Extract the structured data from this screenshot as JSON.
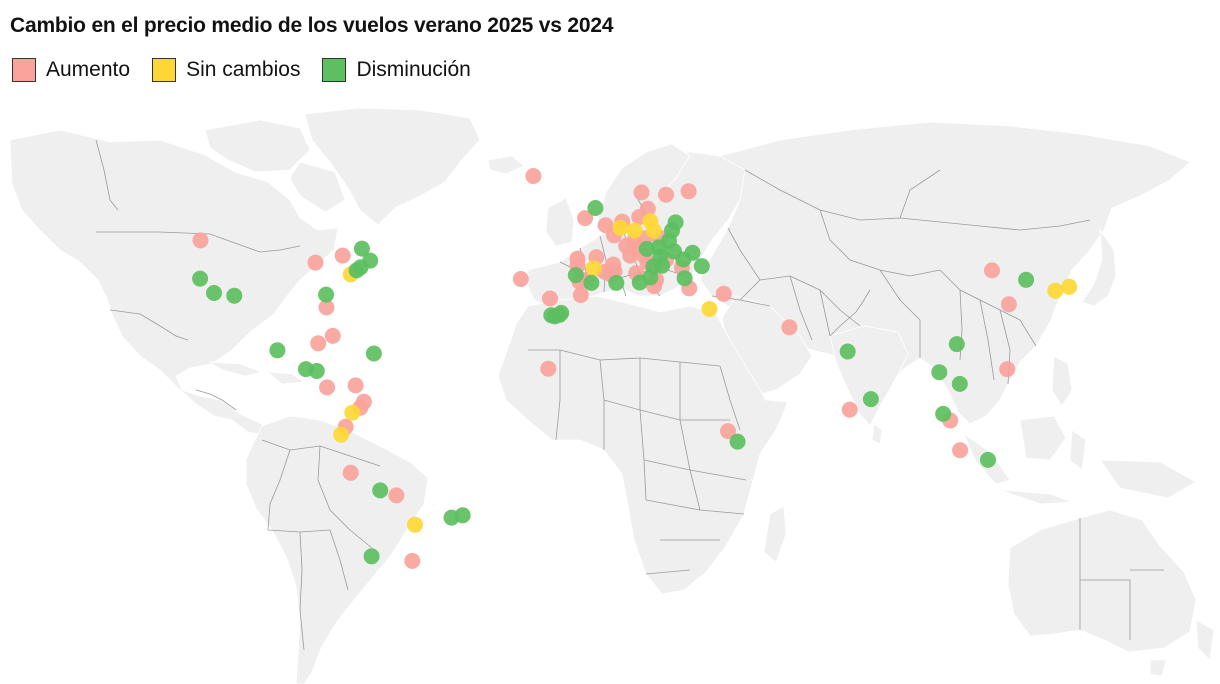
{
  "title": "Cambio en el precio medio de los vuelos verano 2025 vs 2024",
  "legend": [
    {
      "key": "increase",
      "label": "Aumento",
      "color": "#f9a39b"
    },
    {
      "key": "same",
      "label": "Sin cambios",
      "color": "#fdd835"
    },
    {
      "key": "decrease",
      "label": "Disminución",
      "color": "#5cbf60"
    }
  ],
  "markers": [
    {
      "lon": -21.9,
      "lat": 64.1,
      "status": "increase"
    },
    {
      "lon": -122.3,
      "lat": 47.6,
      "status": "increase"
    },
    {
      "lon": -87.6,
      "lat": 41.9,
      "status": "increase"
    },
    {
      "lon": -79.4,
      "lat": 43.7,
      "status": "increase"
    },
    {
      "lon": -73.6,
      "lat": 45.5,
      "status": "decrease"
    },
    {
      "lon": -71.1,
      "lat": 42.4,
      "status": "decrease"
    },
    {
      "lon": -74.0,
      "lat": 40.7,
      "status": "decrease"
    },
    {
      "lon": -75.2,
      "lat": 39.9,
      "status": "decrease"
    },
    {
      "lon": -77.0,
      "lat": 38.9,
      "status": "same"
    },
    {
      "lon": -122.4,
      "lat": 37.8,
      "status": "decrease"
    },
    {
      "lon": -118.2,
      "lat": 34.1,
      "status": "decrease"
    },
    {
      "lon": -112.1,
      "lat": 33.4,
      "status": "decrease"
    },
    {
      "lon": -84.4,
      "lat": 33.7,
      "status": "decrease"
    },
    {
      "lon": -84.3,
      "lat": 30.4,
      "status": "increase"
    },
    {
      "lon": -99.1,
      "lat": 19.4,
      "status": "decrease"
    },
    {
      "lon": -86.8,
      "lat": 21.2,
      "status": "increase"
    },
    {
      "lon": -82.4,
      "lat": 23.1,
      "status": "increase"
    },
    {
      "lon": -70.0,
      "lat": 18.6,
      "status": "decrease"
    },
    {
      "lon": -90.5,
      "lat": 14.6,
      "status": "decrease"
    },
    {
      "lon": -87.2,
      "lat": 14.1,
      "status": "decrease"
    },
    {
      "lon": -84.1,
      "lat": 9.9,
      "status": "increase"
    },
    {
      "lon": -75.5,
      "lat": 10.4,
      "status": "increase"
    },
    {
      "lon": -74.1,
      "lat": 4.7,
      "status": "increase"
    },
    {
      "lon": -73.0,
      "lat": 6.2,
      "status": "increase"
    },
    {
      "lon": -76.5,
      "lat": 3.4,
      "status": "same"
    },
    {
      "lon": -78.5,
      "lat": -0.2,
      "status": "increase"
    },
    {
      "lon": -79.9,
      "lat": -2.2,
      "status": "same"
    },
    {
      "lon": -77.0,
      "lat": -12.0,
      "status": "increase"
    },
    {
      "lon": -68.1,
      "lat": -16.5,
      "status": "decrease"
    },
    {
      "lon": -63.2,
      "lat": -17.8,
      "status": "increase"
    },
    {
      "lon": -57.6,
      "lat": -25.3,
      "status": "same"
    },
    {
      "lon": -46.6,
      "lat": -23.5,
      "status": "decrease"
    },
    {
      "lon": -43.2,
      "lat": -22.9,
      "status": "decrease"
    },
    {
      "lon": -70.7,
      "lat": -33.4,
      "status": "decrease"
    },
    {
      "lon": -58.4,
      "lat": -34.6,
      "status": "increase"
    },
    {
      "lon": -25.7,
      "lat": 37.7,
      "status": "increase"
    },
    {
      "lon": -16.9,
      "lat": 32.7,
      "status": "increase"
    },
    {
      "lon": -17.4,
      "lat": 14.7,
      "status": "increase"
    },
    {
      "lon": -16.5,
      "lat": 28.4,
      "status": "decrease"
    },
    {
      "lon": -15.4,
      "lat": 28.1,
      "status": "decrease"
    },
    {
      "lon": -14.0,
      "lat": 28.5,
      "status": "decrease"
    },
    {
      "lon": -13.5,
      "lat": 29.0,
      "status": "decrease"
    },
    {
      "lon": -7.6,
      "lat": 33.6,
      "status": "increase"
    },
    {
      "lon": -6.3,
      "lat": 53.3,
      "status": "increase"
    },
    {
      "lon": -3.2,
      "lat": 55.9,
      "status": "decrease"
    },
    {
      "lon": -0.1,
      "lat": 51.5,
      "status": "increase"
    },
    {
      "lon": -8.6,
      "lat": 41.1,
      "status": "increase"
    },
    {
      "lon": -8.6,
      "lat": 42.9,
      "status": "increase"
    },
    {
      "lon": -9.1,
      "lat": 38.7,
      "status": "decrease"
    },
    {
      "lon": -8.0,
      "lat": 37.0,
      "status": "increase"
    },
    {
      "lon": -3.7,
      "lat": 40.4,
      "status": "same"
    },
    {
      "lon": -2.9,
      "lat": 43.3,
      "status": "increase"
    },
    {
      "lon": -5.9,
      "lat": 37.4,
      "status": "increase"
    },
    {
      "lon": -4.4,
      "lat": 36.7,
      "status": "decrease"
    },
    {
      "lon": -0.4,
      "lat": 39.5,
      "status": "increase"
    },
    {
      "lon": 2.2,
      "lat": 41.4,
      "status": "increase"
    },
    {
      "lon": 2.6,
      "lat": 39.6,
      "status": "increase"
    },
    {
      "lon": 1.4,
      "lat": 38.9,
      "status": "increase"
    },
    {
      "lon": 2.4,
      "lat": 48.9,
      "status": "increase"
    },
    {
      "lon": 4.4,
      "lat": 50.8,
      "status": "same"
    },
    {
      "lon": 4.9,
      "lat": 52.4,
      "status": "increase"
    },
    {
      "lon": 8.7,
      "lat": 50.1,
      "status": "same"
    },
    {
      "lon": 8.5,
      "lat": 47.4,
      "status": "increase"
    },
    {
      "lon": 6.1,
      "lat": 46.2,
      "status": "increase"
    },
    {
      "lon": 7.3,
      "lat": 43.7,
      "status": "increase"
    },
    {
      "lon": 13.4,
      "lat": 52.5,
      "status": "same"
    },
    {
      "lon": 11.6,
      "lat": 48.1,
      "status": "increase"
    },
    {
      "lon": 10.0,
      "lat": 53.6,
      "status": "increase"
    },
    {
      "lon": 12.6,
      "lat": 55.7,
      "status": "increase"
    },
    {
      "lon": 10.7,
      "lat": 59.9,
      "status": "increase"
    },
    {
      "lon": 18.1,
      "lat": 59.3,
      "status": "increase"
    },
    {
      "lon": 24.9,
      "lat": 60.2,
      "status": "increase"
    },
    {
      "lon": 16.4,
      "lat": 48.2,
      "status": "increase"
    },
    {
      "lon": 14.4,
      "lat": 50.1,
      "status": "same"
    },
    {
      "lon": 21.0,
      "lat": 52.2,
      "status": "decrease"
    },
    {
      "lon": 19.9,
      "lat": 50.1,
      "status": "decrease"
    },
    {
      "lon": 19.0,
      "lat": 47.5,
      "status": "decrease"
    },
    {
      "lon": 26.1,
      "lat": 44.4,
      "status": "decrease"
    },
    {
      "lon": 20.5,
      "lat": 44.8,
      "status": "decrease"
    },
    {
      "lon": 23.3,
      "lat": 42.7,
      "status": "decrease"
    },
    {
      "lon": 15.9,
      "lat": 45.8,
      "status": "decrease"
    },
    {
      "lon": 9.2,
      "lat": 45.5,
      "status": "increase"
    },
    {
      "lon": 12.3,
      "lat": 45.4,
      "status": "decrease"
    },
    {
      "lon": 11.3,
      "lat": 43.8,
      "status": "increase"
    },
    {
      "lon": 12.5,
      "lat": 41.9,
      "status": "increase"
    },
    {
      "lon": 14.3,
      "lat": 40.9,
      "status": "decrease"
    },
    {
      "lon": 16.9,
      "lat": 41.1,
      "status": "decrease"
    },
    {
      "lon": 9.1,
      "lat": 39.2,
      "status": "increase"
    },
    {
      "lon": 13.4,
      "lat": 38.1,
      "status": "decrease"
    },
    {
      "lon": 15.1,
      "lat": 37.5,
      "status": "increase"
    },
    {
      "lon": 14.5,
      "lat": 35.9,
      "status": "increase"
    },
    {
      "lon": 18.1,
      "lat": 42.6,
      "status": "increase"
    },
    {
      "lon": 16.4,
      "lat": 43.5,
      "status": "decrease"
    },
    {
      "lon": 22.9,
      "lat": 40.6,
      "status": "increase"
    },
    {
      "lon": 23.7,
      "lat": 37.9,
      "status": "decrease"
    },
    {
      "lon": 25.1,
      "lat": 35.3,
      "status": "increase"
    },
    {
      "lon": 28.9,
      "lat": 41.0,
      "status": "decrease"
    },
    {
      "lon": 10.2,
      "lat": 36.8,
      "status": "decrease"
    },
    {
      "lon": 3.1,
      "lat": 36.7,
      "status": "decrease"
    },
    {
      "lon": 35.5,
      "lat": 33.9,
      "status": "increase"
    },
    {
      "lon": 31.2,
      "lat": 30.0,
      "status": "same"
    },
    {
      "lon": 55.3,
      "lat": 25.3,
      "status": "increase"
    },
    {
      "lon": 72.9,
      "lat": 19.1,
      "status": "decrease"
    },
    {
      "lon": 73.5,
      "lat": 4.2,
      "status": "increase"
    },
    {
      "lon": 79.9,
      "lat": 6.9,
      "status": "decrease"
    },
    {
      "lon": 36.8,
      "lat": -1.3,
      "status": "increase"
    },
    {
      "lon": 39.7,
      "lat": -4.0,
      "status": "decrease"
    },
    {
      "lon": 116.4,
      "lat": 39.9,
      "status": "increase"
    },
    {
      "lon": 121.5,
      "lat": 31.2,
      "status": "increase"
    },
    {
      "lon": 126.7,
      "lat": 37.5,
      "status": "decrease"
    },
    {
      "lon": 135.5,
      "lat": 34.7,
      "status": "same"
    },
    {
      "lon": 139.7,
      "lat": 35.7,
      "status": "same"
    },
    {
      "lon": 105.8,
      "lat": 21.0,
      "status": "decrease"
    },
    {
      "lon": 100.5,
      "lat": 13.8,
      "status": "decrease"
    },
    {
      "lon": 106.7,
      "lat": 10.8,
      "status": "decrease"
    },
    {
      "lon": 121.0,
      "lat": 14.6,
      "status": "increase"
    },
    {
      "lon": 101.7,
      "lat": 3.1,
      "status": "decrease"
    },
    {
      "lon": 103.8,
      "lat": 1.4,
      "status": "increase"
    },
    {
      "lon": 106.8,
      "lat": -6.2,
      "status": "increase"
    },
    {
      "lon": 115.2,
      "lat": -8.7,
      "status": "decrease"
    }
  ]
}
